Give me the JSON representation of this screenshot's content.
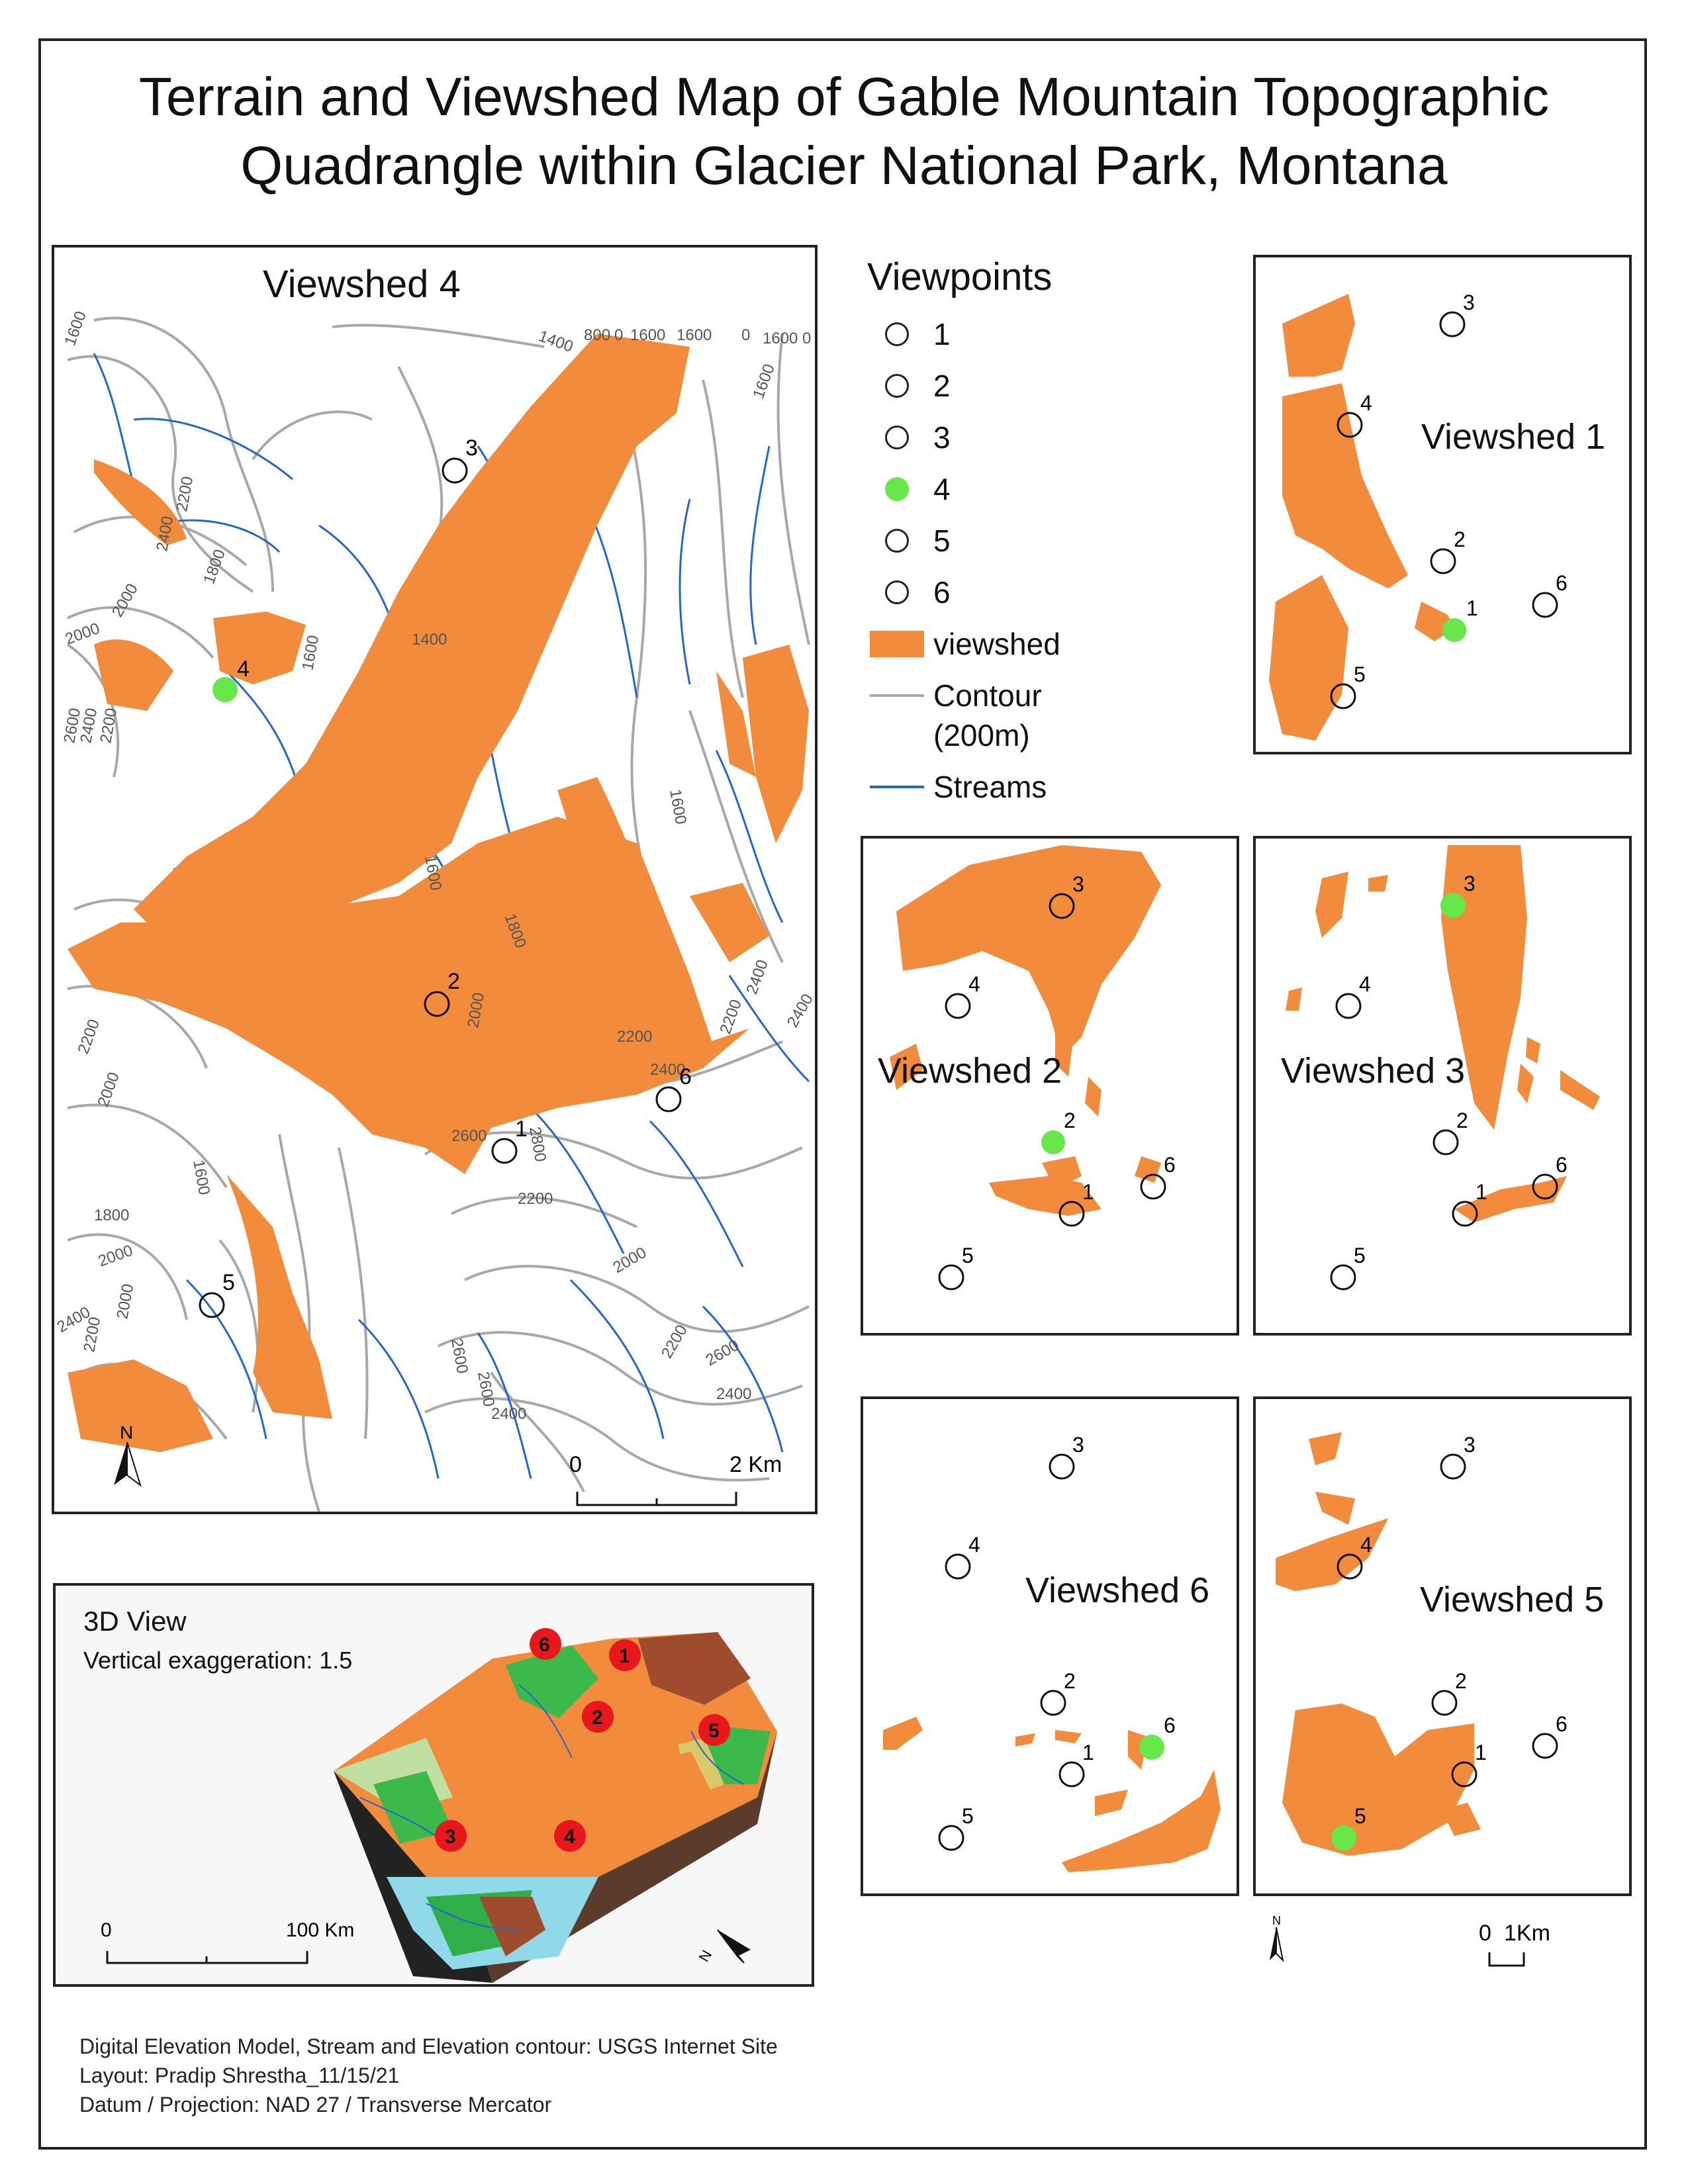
{
  "title_line1": "Terrain and Viewshed Map of Gable Mountain Topographic",
  "title_line2": "Quadrangle within Glacier National Park, Montana",
  "main_map": {
    "title": "Viewshed 4",
    "contour_labels": [
      "1600",
      "1400",
      "800",
      "0",
      "1600",
      "1600",
      "0",
      "1600",
      "0",
      "2200",
      "2400",
      "1800",
      "2000",
      "2000",
      "1600",
      "1400",
      "2600",
      "2400",
      "2200",
      "1600",
      "1600",
      "1800",
      "2000",
      "2200",
      "2400",
      "2400",
      "2400",
      "2200",
      "2600",
      "2800",
      "2200",
      "2200",
      "2000",
      "1600",
      "1800",
      "2000",
      "2000",
      "2400",
      "2200",
      "2600",
      "2600",
      "2400",
      "2200",
      "2600",
      "2400",
      "2000",
      "1600"
    ],
    "north_label": "N",
    "scale_labels": [
      "0",
      "2 Km"
    ],
    "viewpoint_labels": [
      "1",
      "2",
      "3",
      "4",
      "5",
      "6"
    ]
  },
  "legend": {
    "title": "Viewpoints",
    "items": [
      {
        "label": "1",
        "symbol": "circle"
      },
      {
        "label": "2",
        "symbol": "circle"
      },
      {
        "label": "3",
        "symbol": "circle"
      },
      {
        "label": "4",
        "symbol": "circle-green"
      },
      {
        "label": "5",
        "symbol": "circle"
      },
      {
        "label": "6",
        "symbol": "circle"
      },
      {
        "label": "viewshed",
        "symbol": "swatch"
      },
      {
        "label": "Contour",
        "symbol": "gray-line"
      },
      {
        "label": "(200m)",
        "symbol": "none"
      },
      {
        "label": "Streams",
        "symbol": "blue-line"
      }
    ],
    "colors": {
      "viewshed": "#f28c3c",
      "active": "#66e84a",
      "contour": "#a8a8a8",
      "stream": "#2366d1"
    }
  },
  "viewshed1": {
    "title": "Viewshed 1"
  },
  "viewshed2": {
    "title": "Viewshed 2"
  },
  "viewshed3": {
    "title": "Viewshed 3"
  },
  "viewshed5": {
    "title": "Viewshed 5"
  },
  "viewshed6": {
    "title": "Viewshed 6"
  },
  "small_scale": {
    "north": "N",
    "labels": [
      "0",
      "1Km"
    ]
  },
  "view3d": {
    "title": "3D View",
    "subtitle": "Vertical exaggeration: 1.5",
    "scale_labels": [
      "0",
      "100 Km"
    ],
    "north": "N",
    "markers": [
      "6",
      "1",
      "2",
      "5",
      "3",
      "4"
    ]
  },
  "credits": {
    "line1": "Digital Elevation Model, Stream and Elevation contour: USGS Internet Site",
    "line2": "Layout: Pradip Shrestha_11/15/21",
    "line3": "Datum / Projection: NAD 27 / Transverse Mercator"
  }
}
